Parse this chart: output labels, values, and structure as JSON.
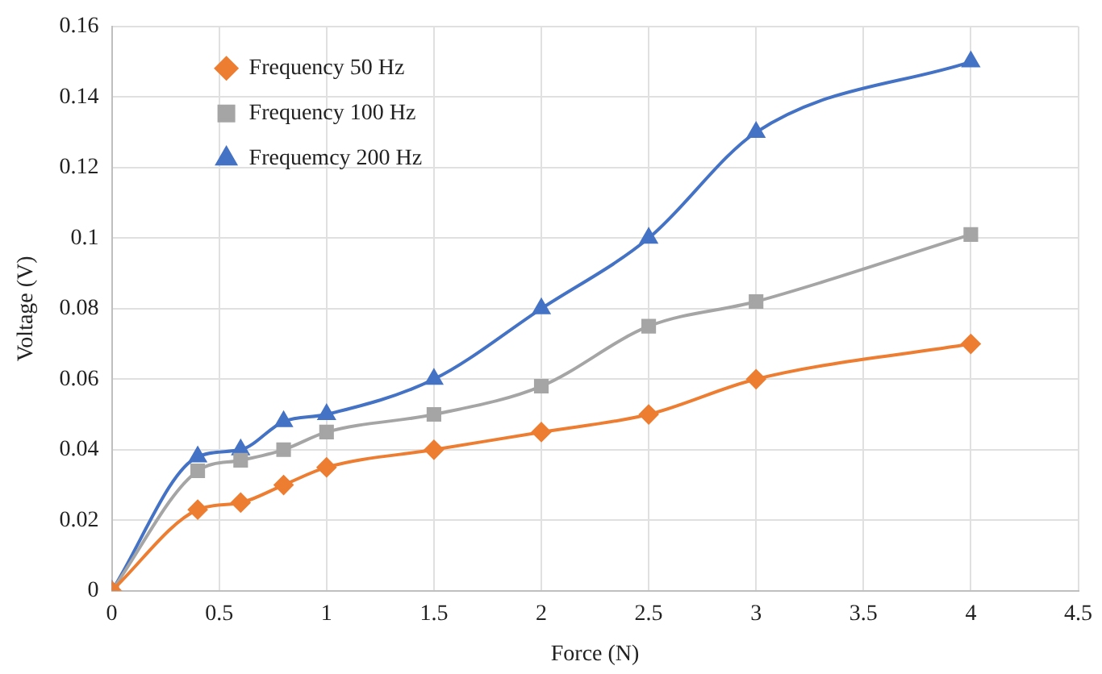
{
  "chart_data": {
    "type": "line",
    "xlabel": "Force (N)",
    "ylabel": "Voltage (V)",
    "x": [
      0,
      0.4,
      0.6,
      0.8,
      1,
      1.5,
      2,
      2.5,
      3,
      4
    ],
    "series": [
      {
        "name": "Frequency 50 Hz",
        "color": "#ed7d31",
        "marker": "diamond",
        "values": [
          0,
          0.023,
          0.025,
          0.03,
          0.035,
          0.04,
          0.045,
          0.05,
          0.06,
          0.07
        ]
      },
      {
        "name": "Frequency 100 Hz",
        "color": "#a5a5a5",
        "marker": "square",
        "values": [
          0,
          0.034,
          0.037,
          0.04,
          0.045,
          0.05,
          0.058,
          0.075,
          0.082,
          0.101
        ]
      },
      {
        "name": "Frequemcy 200 Hz",
        "color": "#4472c4",
        "marker": "triangle",
        "values": [
          0,
          0.038,
          0.04,
          0.048,
          0.05,
          0.06,
          0.08,
          0.1,
          0.13,
          0.15
        ]
      }
    ],
    "xlim": [
      0,
      4.5
    ],
    "xticks": [
      0,
      0.5,
      1,
      1.5,
      2,
      2.5,
      3,
      3.5,
      4,
      4.5
    ],
    "ylim": [
      0,
      0.16
    ],
    "yticks": [
      0,
      0.02,
      0.04,
      0.06,
      0.08,
      0.1,
      0.12,
      0.14,
      0.16
    ],
    "grid": true,
    "legend": "top left"
  }
}
